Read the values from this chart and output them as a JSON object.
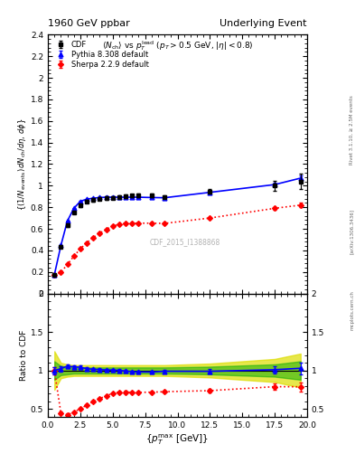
{
  "title_left": "1960 GeV ppbar",
  "title_right": "Underlying Event",
  "watermark": "CDF_2015_I1388868",
  "right_label": "Rivet 3.1.10, ≥ 2.5M events",
  "arxiv_label": "[arXiv:1306.3436]",
  "mcplots_label": "mcplots.cern.ch",
  "ylabel_main": "  {(1/N_{events}) dN_{ch}/dη, dφ}",
  "ylabel_ratio": "Ratio to CDF",
  "xlim": [
    0,
    20
  ],
  "ylim_main": [
    0,
    2.4
  ],
  "ylim_ratio": [
    0.4,
    2.0
  ],
  "cdf_x": [
    0.5,
    1.0,
    1.5,
    2.0,
    2.5,
    3.0,
    3.5,
    4.0,
    4.5,
    5.0,
    5.5,
    6.0,
    6.5,
    7.0,
    8.0,
    9.0,
    12.5,
    17.5,
    19.5
  ],
  "cdf_y": [
    0.175,
    0.435,
    0.635,
    0.755,
    0.82,
    0.855,
    0.87,
    0.88,
    0.887,
    0.888,
    0.892,
    0.9,
    0.907,
    0.91,
    0.908,
    0.897,
    0.948,
    1.0,
    1.04
  ],
  "cdf_yerr": [
    0.008,
    0.015,
    0.015,
    0.015,
    0.015,
    0.015,
    0.015,
    0.015,
    0.015,
    0.015,
    0.015,
    0.015,
    0.015,
    0.015,
    0.015,
    0.015,
    0.025,
    0.045,
    0.075
  ],
  "pythia_x": [
    0.5,
    1.0,
    1.5,
    2.0,
    2.5,
    3.0,
    3.5,
    4.0,
    4.5,
    5.0,
    5.5,
    6.0,
    6.5,
    7.0,
    8.0,
    9.0,
    12.5,
    17.5,
    19.5
  ],
  "pythia_y": [
    0.175,
    0.445,
    0.672,
    0.79,
    0.855,
    0.875,
    0.884,
    0.89,
    0.893,
    0.893,
    0.893,
    0.893,
    0.893,
    0.893,
    0.89,
    0.888,
    0.938,
    1.01,
    1.07
  ],
  "pythia_yerr": [
    0.003,
    0.005,
    0.005,
    0.005,
    0.005,
    0.005,
    0.005,
    0.005,
    0.005,
    0.005,
    0.005,
    0.005,
    0.005,
    0.005,
    0.005,
    0.005,
    0.008,
    0.015,
    0.025
  ],
  "sherpa_x": [
    0.5,
    1.0,
    1.5,
    2.0,
    2.5,
    3.0,
    3.5,
    4.0,
    4.5,
    5.0,
    5.5,
    6.0,
    6.5,
    7.0,
    8.0,
    9.0,
    12.5,
    17.5,
    19.5
  ],
  "sherpa_y": [
    0.175,
    0.195,
    0.27,
    0.345,
    0.415,
    0.47,
    0.52,
    0.56,
    0.595,
    0.625,
    0.64,
    0.648,
    0.65,
    0.652,
    0.652,
    0.65,
    0.7,
    0.79,
    0.82
  ],
  "sherpa_yerr": [
    0.003,
    0.006,
    0.006,
    0.006,
    0.006,
    0.006,
    0.006,
    0.006,
    0.006,
    0.006,
    0.006,
    0.006,
    0.006,
    0.006,
    0.006,
    0.006,
    0.01,
    0.015,
    0.02
  ],
  "band_x": [
    0.5,
    1.0,
    1.5,
    2.0,
    2.5,
    3.0,
    3.5,
    4.0,
    4.5,
    5.0,
    5.5,
    6.0,
    6.5,
    7.0,
    8.0,
    9.0,
    12.5,
    17.5,
    19.5
  ],
  "band_green_half": [
    0.12,
    0.06,
    0.05,
    0.04,
    0.04,
    0.04,
    0.04,
    0.04,
    0.04,
    0.04,
    0.04,
    0.04,
    0.04,
    0.04,
    0.04,
    0.04,
    0.05,
    0.08,
    0.12
  ],
  "band_yellow_half": [
    0.25,
    0.1,
    0.08,
    0.07,
    0.07,
    0.07,
    0.07,
    0.07,
    0.07,
    0.07,
    0.07,
    0.07,
    0.07,
    0.07,
    0.07,
    0.07,
    0.09,
    0.15,
    0.22
  ],
  "cdf_color": "#000000",
  "pythia_color": "#0000ff",
  "sherpa_color": "#ff0000",
  "green_color": "#00aa00",
  "yellow_color": "#dddd00",
  "legend_cdf": "CDF",
  "legend_pythia": "Pythia 8.308 default",
  "legend_sherpa": "Sherpa 2.2.9 default"
}
